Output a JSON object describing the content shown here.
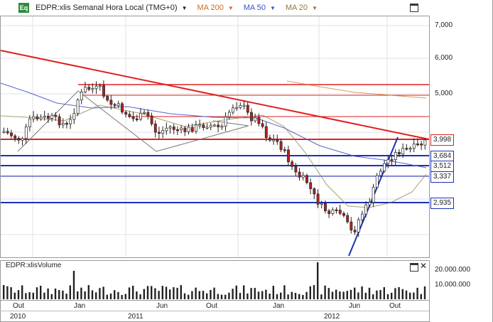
{
  "header": {
    "eq_label": "Eq",
    "symbol_title": "EDPR:xlis Semanal Hora Local (TMG+0)",
    "ma200": "MA 200",
    "ma50": "MA 50",
    "ma20": "MA 20",
    "ma200_color": "#d2691e",
    "ma50_color": "#3355cc",
    "ma20_color": "#8b7d3a"
  },
  "price_axis": [
    "7,000",
    "6,000",
    "5,000"
  ],
  "price_tags": [
    "3,998",
    "3,684",
    "3,512",
    "3,337",
    "2,935"
  ],
  "volume_panel": {
    "title": "EDPR:xlisVolume",
    "axis": [
      "20.000.000",
      "10.000.000"
    ]
  },
  "x_axis": {
    "months": [
      "Out",
      "Jan",
      "Jun",
      "Out",
      "Jan",
      "Jun",
      "Out"
    ],
    "years": [
      "2010",
      "2011",
      "2012"
    ]
  },
  "colors": {
    "up_candle": "#ffffff",
    "down_candle": "#b22222",
    "trend_red": "#e02020",
    "support_blue": "#1a2fb8",
    "grid": "#d8d8d8"
  }
}
